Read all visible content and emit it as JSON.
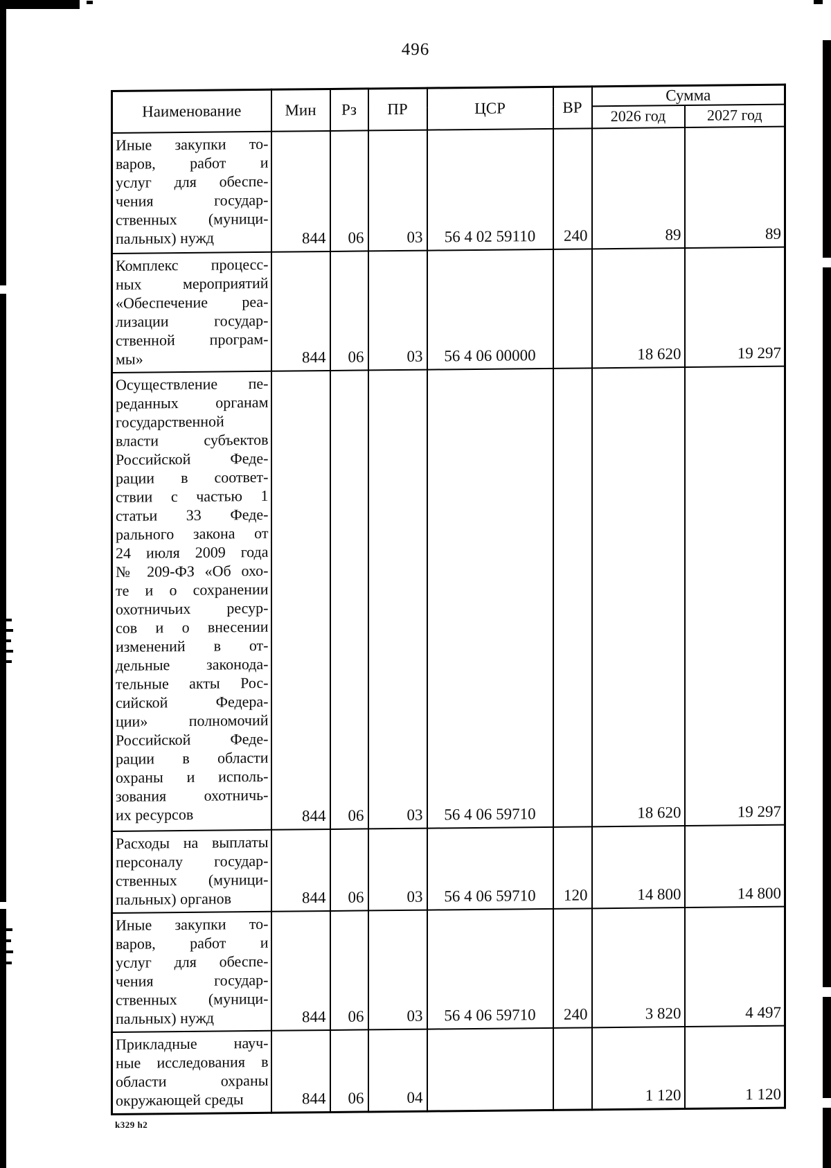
{
  "page": {
    "number": "496",
    "footer_note": "k329 h2"
  },
  "table": {
    "headers": {
      "name": "Наименование",
      "min": "Мин",
      "rz": "Рз",
      "pr": "ПР",
      "csr": "ЦСР",
      "vr": "ВР",
      "sum_group": "Сумма",
      "year_2026": "2026 год",
      "year_2027": "2027 год"
    },
    "rows": [
      {
        "name_lines": [
          "Иные закупки то-",
          "варов, работ и",
          "услуг для обеспе-",
          "чения государ-",
          "ственных (муници-",
          "пальных) нужд"
        ],
        "min": "844",
        "rz": "06",
        "pr": "03",
        "csr": "56 4 02 59110",
        "vr": "240",
        "y2026": "89",
        "y2027": "89"
      },
      {
        "name_lines": [
          "Комплекс процесс-",
          "ных мероприятий",
          "«Обеспечение реа-",
          "лизации государ-",
          "ственной програм-",
          "мы»"
        ],
        "min": "844",
        "rz": "06",
        "pr": "03",
        "csr": "56 4 06 00000",
        "vr": "",
        "y2026": "18 620",
        "y2027": "19 297"
      },
      {
        "name_lines": [
          "Осуществление пе-",
          "реданных органам",
          "государственной",
          "власти субъектов",
          "Российской Феде-",
          "рации в соответ-",
          "ствии с частью 1",
          "статьи 33 Феде-",
          "рального закона от",
          "24 июля 2009 года",
          "№ 209-ФЗ «Об охо-",
          "те и о сохранении",
          "охотничьих ресур-",
          "сов и о внесении",
          "изменений в от-",
          "дельные законода-",
          "тельные акты Рос-",
          "сийской Федера-",
          "ции» полномочий",
          "Российской Феде-",
          "рации в области",
          "охраны и исполь-",
          "зования охотничь-",
          "их ресурсов"
        ],
        "min": "844",
        "rz": "06",
        "pr": "03",
        "csr": "56 4 06 59710",
        "vr": "",
        "y2026": "18 620",
        "y2027": "19 297"
      },
      {
        "name_lines": [
          "Расходы на выплаты",
          "персоналу государ-",
          "ственных (муници-",
          "пальных) органов"
        ],
        "min": "844",
        "rz": "06",
        "pr": "03",
        "csr": "56 4 06 59710",
        "vr": "120",
        "y2026": "14 800",
        "y2027": "14 800"
      },
      {
        "name_lines": [
          "Иные закупки то-",
          "варов, работ и",
          "услуг для обеспе-",
          "чения государ-",
          "ственных (муници-",
          "пальных) нужд"
        ],
        "min": "844",
        "rz": "06",
        "pr": "03",
        "csr": "56 4 06 59710",
        "vr": "240",
        "y2026": "3 820",
        "y2027": "4 497"
      },
      {
        "name_lines": [
          "Прикладные науч-",
          "ные исследования в",
          "области охраны",
          "окружающей среды"
        ],
        "min": "844",
        "rz": "06",
        "pr": "04",
        "csr": "",
        "vr": "",
        "y2026": "1 120",
        "y2027": "1 120"
      }
    ]
  }
}
